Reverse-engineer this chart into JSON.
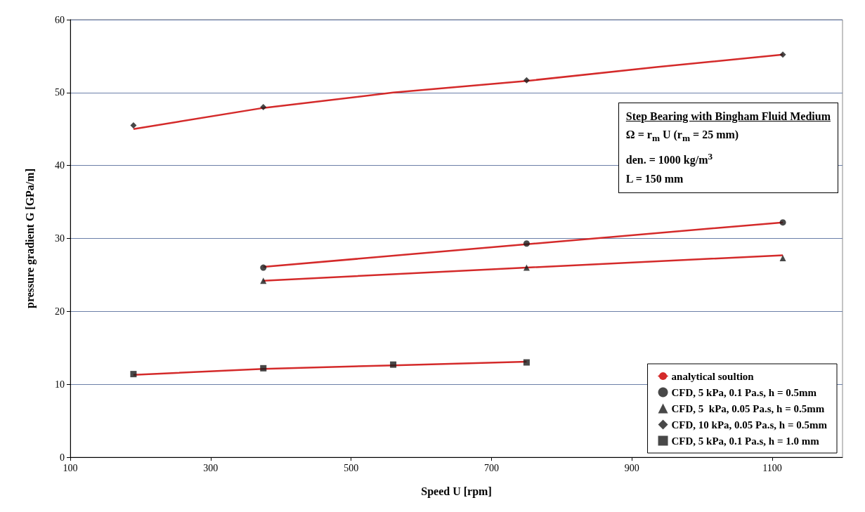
{
  "chart_data": {
    "type": "scatter",
    "xlabel": "Speed U [rpm]",
    "ylabel": "pressure gradient G [GPa/m]",
    "xlim": [
      100,
      1200
    ],
    "xticks": [
      100,
      300,
      500,
      700,
      900,
      1100
    ],
    "ylim": [
      0,
      60
    ],
    "yticks": [
      0,
      10,
      20,
      30,
      40,
      50,
      60
    ],
    "grid": "y",
    "legend": "bottom right",
    "annotations": [
      "Step Bearing with Bingham Fluid Medium",
      "Ω = r$_{m}$ U (r$_{m}$ = 25 mm)",
      "den. = 1000 kg/m$^{3}$",
      "L = 150 mm"
    ],
    "series": [
      {
        "name": "analytical soultion",
        "type": "line",
        "marker": "none",
        "color": "#d42a2a",
        "x": [
          190,
          375,
          560,
          750,
          935,
          1115
        ],
        "values": [
          45.0,
          47.9,
          50.0,
          51.6,
          53.5,
          55.2
        ]
      },
      {
        "type": "line",
        "marker": "none",
        "color": "#d42a2a",
        "x": [
          375,
          750,
          1115
        ],
        "values": [
          26.1,
          29.2,
          32.2
        ]
      },
      {
        "type": "line",
        "marker": "none",
        "color": "#d42a2a",
        "x": [
          375,
          750,
          1115
        ],
        "values": [
          24.2,
          26.0,
          27.7
        ]
      },
      {
        "type": "line",
        "marker": "none",
        "color": "#d42a2a",
        "x": [
          190,
          375,
          560,
          750
        ],
        "values": [
          11.3,
          12.1,
          12.6,
          13.1
        ]
      },
      {
        "name": "CFD, 5 kPa, 0.1 Pa.s, h = 0.5mm",
        "marker": "circle",
        "color": "#1a1a1a",
        "x": [
          375,
          750,
          1115
        ],
        "values": [
          26.0,
          29.3,
          32.2
        ]
      },
      {
        "name": "CFD, 5  kPa, 0.05 Pa.s, h = 0.5mm",
        "marker": "triangle",
        "color": "#1a1a1a",
        "x": [
          375,
          750,
          1115
        ],
        "values": [
          24.2,
          26.0,
          27.3
        ]
      },
      {
        "name": "CFD, 10 kPa, 0.05 Pa.s, h = 0.5mm",
        "marker": "diamond",
        "color": "#1a1a1a",
        "x": [
          190,
          375,
          750,
          1115
        ],
        "values": [
          45.5,
          48.0,
          51.7,
          55.2
        ]
      },
      {
        "name": "CFD, 5 kPa, 0.1 Pa.s, h = 1.0 mm",
        "marker": "square",
        "color": "#1a1a1a",
        "x": [
          190,
          375,
          560,
          750
        ],
        "values": [
          11.4,
          12.2,
          12.7,
          13.0
        ]
      }
    ]
  }
}
